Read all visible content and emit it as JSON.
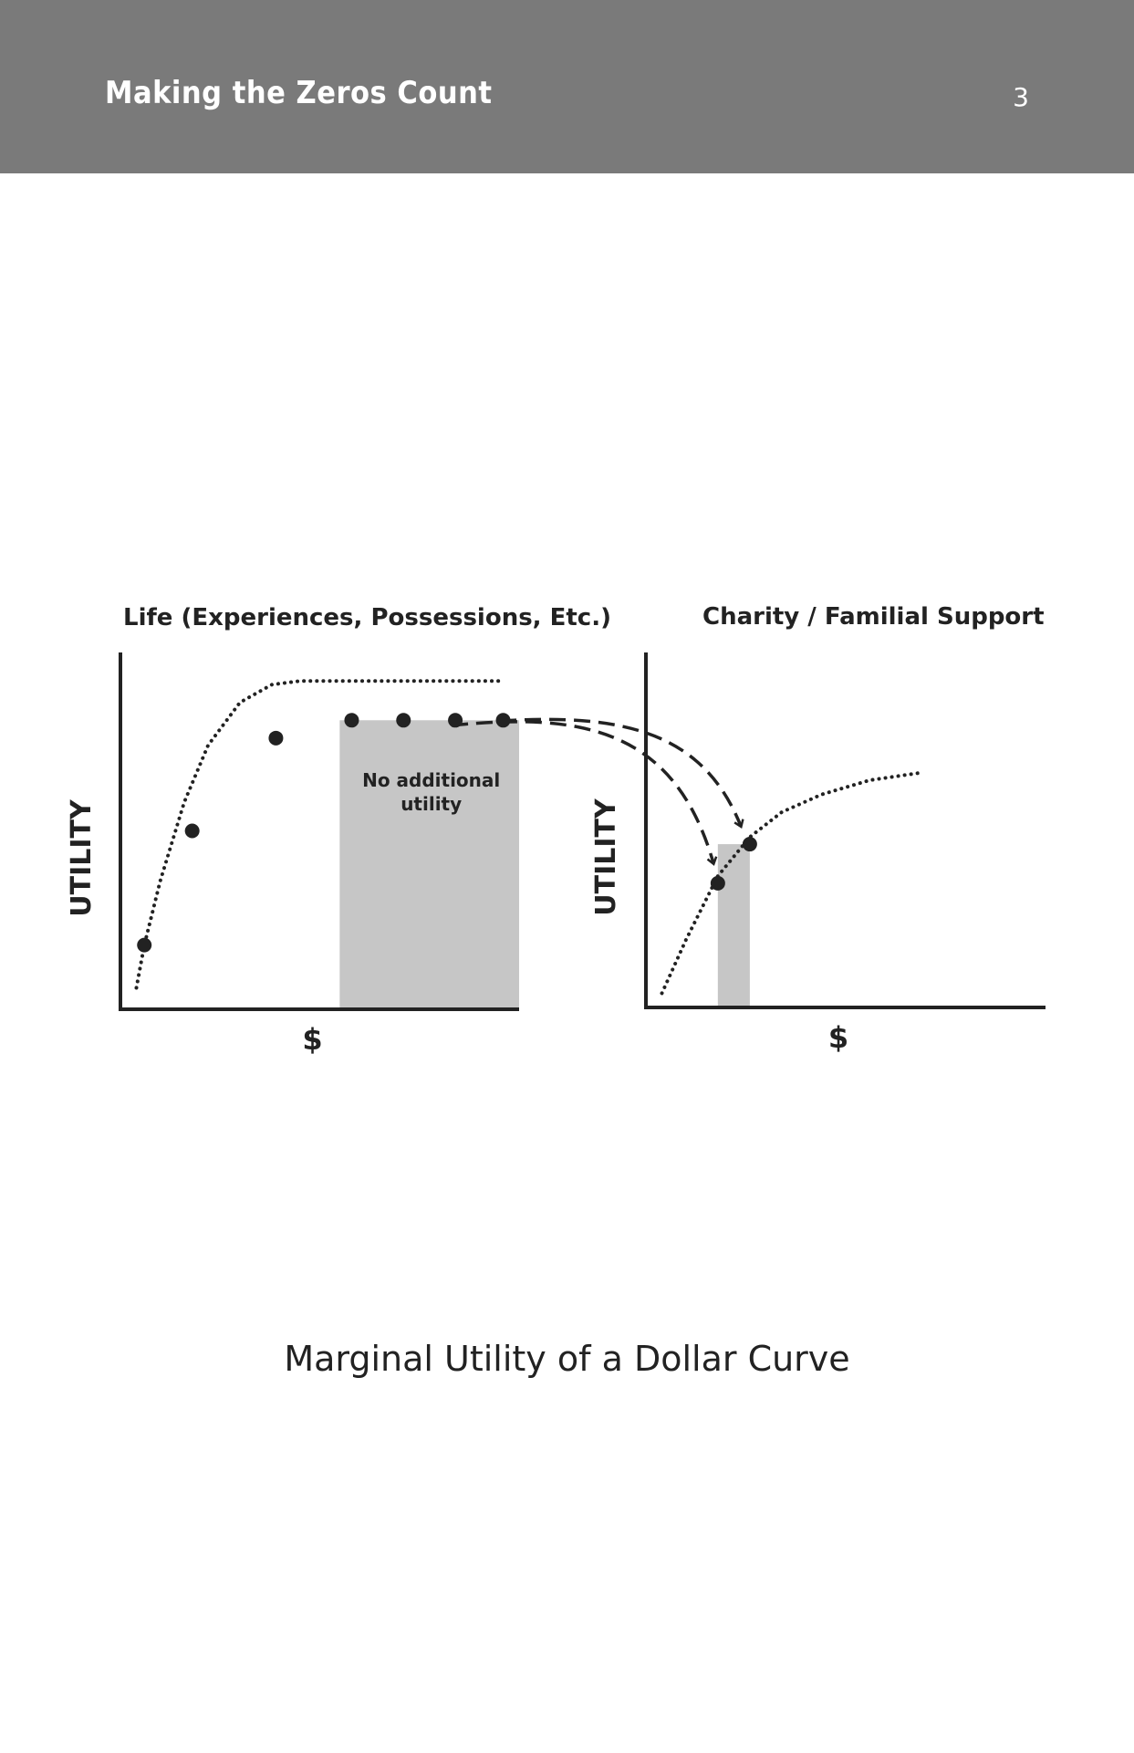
{
  "header": {
    "running_title": "Making the Zeros Count",
    "page_number": "3"
  },
  "figure": {
    "caption": "Marginal Utility of a Dollar Curve"
  },
  "colors": {
    "header_bg": "#7a7a7a",
    "ink": "#222222",
    "shade": "#c6c6c6"
  },
  "chart_data": [
    {
      "type": "line",
      "title": "Life (Experiences, Possessions, Etc.)",
      "xlabel": "$",
      "ylabel": "UTILITY",
      "xlim": [
        0,
        10
      ],
      "ylim": [
        0,
        10
      ],
      "grid": false,
      "series": [
        {
          "style": "dotted",
          "x": [
            0.4,
            0.6,
            1.0,
            1.6,
            2.2,
            3.0,
            3.8,
            4.5,
            5.8,
            7.0,
            8.3,
            9.6
          ],
          "y": [
            0.6,
            1.8,
            3.6,
            5.8,
            7.4,
            8.6,
            9.1,
            9.2,
            9.2,
            9.2,
            9.2,
            9.2
          ]
        }
      ],
      "points": {
        "x": [
          0.6,
          1.8,
          3.9,
          5.8,
          7.1,
          8.4,
          9.6
        ],
        "y": [
          1.8,
          5.0,
          7.6,
          8.1,
          8.1,
          8.1,
          8.1
        ]
      },
      "shaded_region": {
        "x": [
          5.5,
          10
        ],
        "label": "No additional utility"
      },
      "annotation": "No additional utility"
    },
    {
      "type": "line",
      "title": "Charity / Familial Support",
      "xlabel": "$",
      "ylabel": "UTILITY",
      "xlim": [
        0,
        10
      ],
      "ylim": [
        0,
        10
      ],
      "grid": false,
      "series": [
        {
          "style": "dotted",
          "x": [
            0.4,
            1.0,
            1.8,
            2.6,
            3.4,
            4.4,
            5.6,
            6.8
          ],
          "y": [
            0.4,
            1.9,
            3.7,
            4.8,
            5.5,
            6.0,
            6.4,
            6.6
          ]
        }
      ],
      "points": {
        "x": [
          1.8,
          2.6
        ],
        "y": [
          3.5,
          4.6
        ]
      },
      "shaded_region": {
        "x": [
          1.8,
          2.6
        ]
      },
      "arrows": "dashed arrows from the flat portion of the Life curve to the two points on the Charity curve"
    }
  ]
}
